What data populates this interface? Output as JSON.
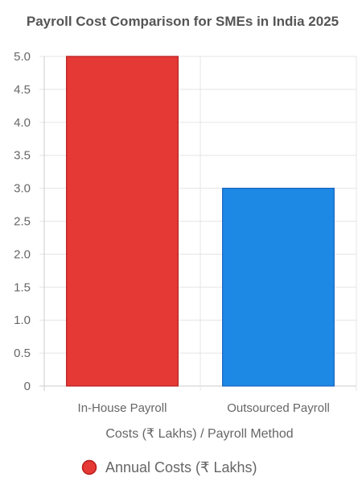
{
  "chart_data": {
    "type": "bar",
    "title": "Payroll Cost Comparison for SMEs in India 2025",
    "categories": [
      "In-House Payroll",
      "Outsourced Payroll"
    ],
    "series": [
      {
        "name": "Annual Costs (₹ Lakhs)",
        "values": [
          5.0,
          3.0
        ],
        "colors": [
          "#e53935",
          "#1e88e5"
        ],
        "border_colors": [
          "#b71c1c",
          "#1565c0"
        ]
      }
    ],
    "xlabel": "Costs (₹ Lakhs) / Payroll Method",
    "ylabel": "",
    "ylim": [
      0,
      5
    ],
    "yticks": [
      "0",
      "0.5",
      "1.0",
      "1.5",
      "2.0",
      "2.5",
      "3.0",
      "3.5",
      "4.0",
      "4.5",
      "5.0"
    ],
    "grid": true,
    "legend_position": "bottom"
  },
  "colors": {
    "grid": "#e5e5e5",
    "axis": "#cccccc"
  }
}
